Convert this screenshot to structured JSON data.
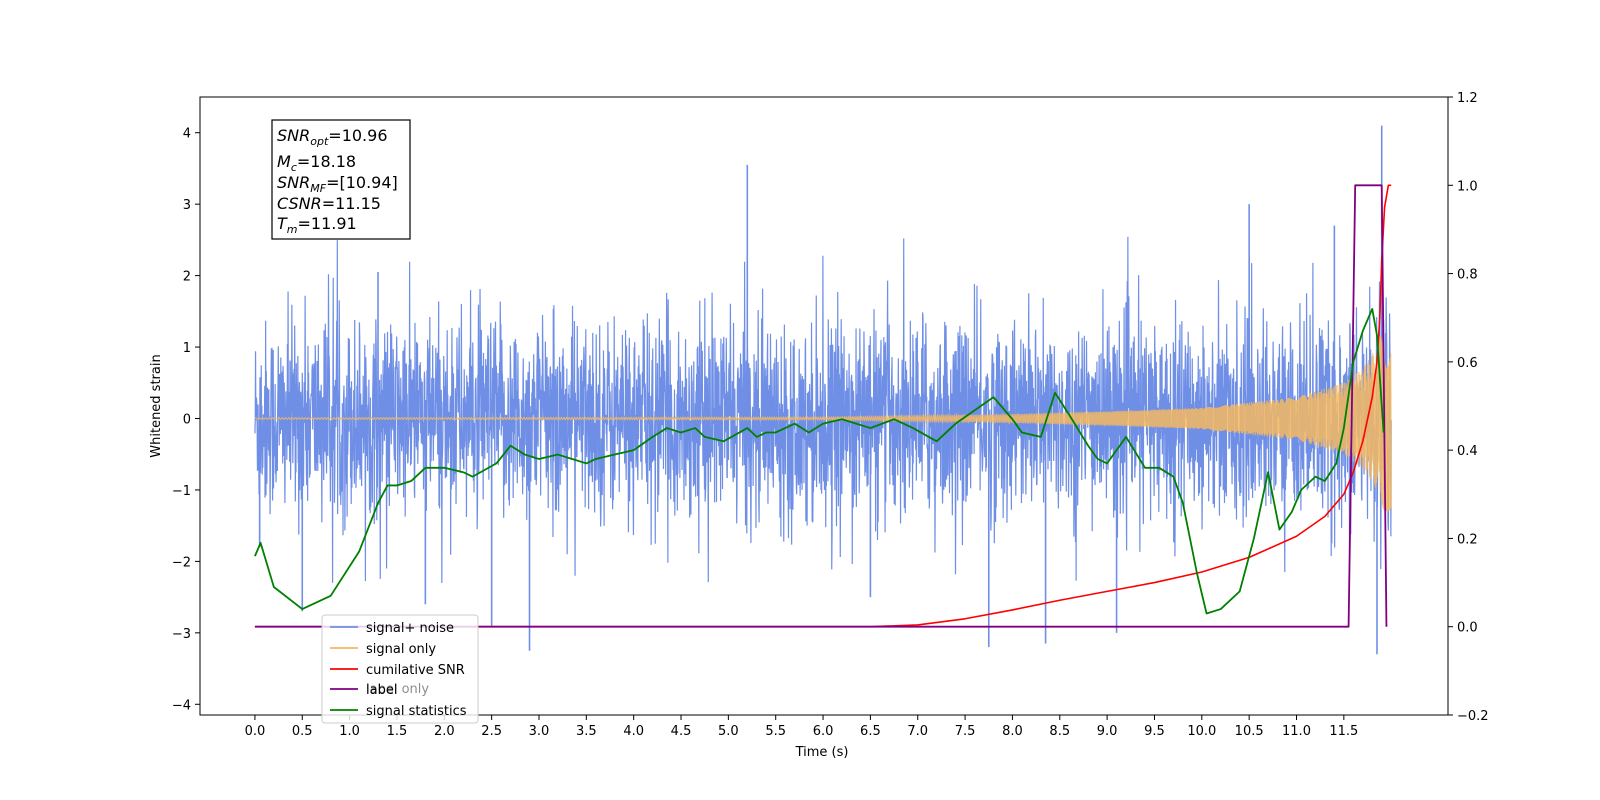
{
  "chart_data": {
    "type": "line",
    "xlabel": "Time (s)",
    "ylabel": "Whitened strain",
    "xlim": [
      -0.58,
      12.6
    ],
    "ylim": [
      -4.15,
      4.5
    ],
    "y2lim": [
      -0.2,
      1.2
    ],
    "x_ticks": [
      "0.0",
      "0.5",
      "1.0",
      "1.5",
      "2.0",
      "2.5",
      "3.0",
      "3.5",
      "4.0",
      "4.5",
      "5.0",
      "5.5",
      "6.0",
      "6.5",
      "7.0",
      "7.5",
      "8.0",
      "8.5",
      "9.0",
      "9.5",
      "10.0",
      "10.5",
      "11.0",
      "11.5"
    ],
    "y_ticks": [
      "4",
      "3",
      "2",
      "1",
      "0",
      "−1",
      "−2",
      "−3",
      "−4"
    ],
    "y2_ticks": [
      "1.2",
      "1.0",
      "0.8",
      "0.6",
      "0.4",
      "0.2",
      "0.0",
      "−0.2"
    ],
    "grid": false,
    "legend_position": "lower-left",
    "info_box": {
      "snr_opt": {
        "sym": "SNR",
        "sub": "opt",
        "value": "=10.96"
      },
      "mc": {
        "sym": "M",
        "sub": "c",
        "value": "=18.18"
      },
      "snr_mf": {
        "sym": "SNR",
        "sub": "MF",
        "value": "=[10.94]"
      },
      "csnr": {
        "sym": "CSNR",
        "sub": "",
        "value": "=11.15"
      },
      "tm": {
        "sym": "T",
        "sub": "m",
        "value": "=11.91"
      }
    },
    "legend": [
      {
        "label": "signal+ noise",
        "color": "#6f8fe6"
      },
      {
        "label": "signal only",
        "color": "#f5b860"
      },
      {
        "label": "cumilative SNR",
        "color": "#ff0000"
      },
      {
        "label": "label",
        "color": "#800080"
      },
      {
        "label": "signal statistics",
        "color": "#008000"
      }
    ],
    "legend_hidden_text": "label only",
    "series": [
      {
        "name": "signal+ noise",
        "axis": "left",
        "color": "#6f8fe6",
        "x_range": [
          0.0,
          12.0
        ],
        "typical_envelope": [
          -1.6,
          1.6
        ],
        "peaks": [
          [
            0.05,
            -1.8
          ],
          [
            0.5,
            -2.7
          ],
          [
            1.3,
            2.05
          ],
          [
            1.8,
            -2.6
          ],
          [
            2.5,
            -2.9
          ],
          [
            2.9,
            -3.25
          ],
          [
            5.2,
            3.55
          ],
          [
            6.5,
            -2.5
          ],
          [
            7.75,
            -3.2
          ],
          [
            8.35,
            -3.15
          ],
          [
            9.1,
            -3.0
          ],
          [
            10.5,
            3.0
          ],
          [
            11.4,
            2.7
          ],
          [
            11.85,
            -3.3
          ],
          [
            11.9,
            4.1
          ]
        ]
      },
      {
        "name": "signal only",
        "axis": "left",
        "color": "#f5b860",
        "x_range": [
          0.0,
          12.0
        ],
        "amplitude_at_t": [
          [
            0.0,
            0.01
          ],
          [
            6.0,
            0.02
          ],
          [
            8.0,
            0.06
          ],
          [
            9.0,
            0.1
          ],
          [
            10.0,
            0.15
          ],
          [
            11.0,
            0.3
          ],
          [
            11.5,
            0.5
          ],
          [
            11.7,
            0.7
          ],
          [
            11.85,
            1.0
          ],
          [
            11.9,
            1.3
          ]
        ]
      },
      {
        "name": "cumilative SNR",
        "axis": "right",
        "color": "#ff0000",
        "x": [
          0.0,
          6.5,
          7.0,
          7.5,
          8.0,
          8.5,
          9.0,
          9.5,
          10.0,
          10.5,
          11.0,
          11.3,
          11.5,
          11.6,
          11.7,
          11.8,
          11.85,
          11.88,
          11.9,
          11.93,
          11.97,
          12.0
        ],
        "values": [
          0.0,
          0.0,
          0.004,
          0.018,
          0.038,
          0.06,
          0.08,
          0.1,
          0.124,
          0.157,
          0.205,
          0.25,
          0.3,
          0.35,
          0.42,
          0.52,
          0.6,
          0.7,
          0.83,
          0.95,
          1.0,
          1.0
        ]
      },
      {
        "name": "label",
        "axis": "right",
        "color": "#800080",
        "x": [
          0.0,
          11.55,
          11.62,
          11.9,
          11.95
        ],
        "values": [
          0.0,
          0.0,
          1.0,
          1.0,
          0.0
        ]
      },
      {
        "name": "signal statistics",
        "axis": "right",
        "color": "#008000",
        "x": [
          0.0,
          0.06,
          0.2,
          0.5,
          0.8,
          1.1,
          1.3,
          1.4,
          1.5,
          1.65,
          1.8,
          2.0,
          2.2,
          2.3,
          2.55,
          2.7,
          2.85,
          3.0,
          3.2,
          3.5,
          3.6,
          3.8,
          4.0,
          4.2,
          4.35,
          4.5,
          4.65,
          4.75,
          4.95,
          5.2,
          5.3,
          5.4,
          5.5,
          5.7,
          5.85,
          6.0,
          6.2,
          6.5,
          6.75,
          6.95,
          7.2,
          7.4,
          7.6,
          7.8,
          8.0,
          8.1,
          8.3,
          8.45,
          8.6,
          8.8,
          8.9,
          9.0,
          9.2,
          9.4,
          9.55,
          9.7,
          9.8,
          9.95,
          10.05,
          10.2,
          10.4,
          10.55,
          10.7,
          10.82,
          10.95,
          11.05,
          11.2,
          11.3,
          11.42,
          11.5,
          11.6,
          11.7,
          11.8,
          11.85,
          11.92
        ],
        "values": [
          0.16,
          0.19,
          0.09,
          0.04,
          0.07,
          0.17,
          0.28,
          0.32,
          0.32,
          0.33,
          0.36,
          0.36,
          0.35,
          0.34,
          0.37,
          0.41,
          0.39,
          0.38,
          0.39,
          0.37,
          0.38,
          0.39,
          0.4,
          0.43,
          0.45,
          0.44,
          0.45,
          0.43,
          0.42,
          0.45,
          0.43,
          0.44,
          0.44,
          0.46,
          0.44,
          0.46,
          0.47,
          0.45,
          0.47,
          0.45,
          0.42,
          0.46,
          0.49,
          0.52,
          0.47,
          0.44,
          0.43,
          0.53,
          0.48,
          0.41,
          0.38,
          0.37,
          0.43,
          0.36,
          0.36,
          0.34,
          0.28,
          0.12,
          0.03,
          0.04,
          0.08,
          0.2,
          0.35,
          0.22,
          0.26,
          0.31,
          0.34,
          0.33,
          0.37,
          0.45,
          0.6,
          0.67,
          0.72,
          0.66,
          0.44
        ]
      }
    ]
  }
}
